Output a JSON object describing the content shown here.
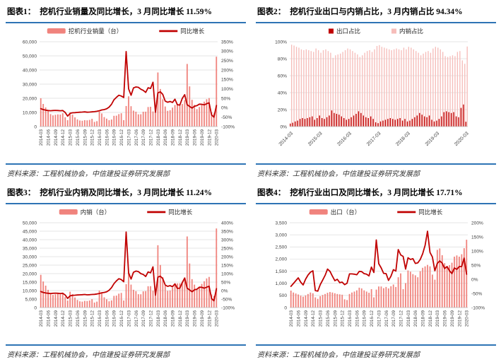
{
  "colors": {
    "accent_rule": "#2E74B5",
    "bar_pink": "#F0837D",
    "pale_pink": "#F6BDBA",
    "line_red": "#C00000",
    "grid": "#DCDCDC",
    "axis_text": "#3F3F3F"
  },
  "panels": [
    {
      "tag": "图表1：",
      "title": "挖机行业销量及同比增长，3 月同比增长 11.59%",
      "source": "资料来源：工程机械协会，中信建投证券研究发展部"
    },
    {
      "tag": "图表2：",
      "title": "挖机行业出口与内销占比，3 月内销占比 94.34%",
      "source": "资料来源：工程机械协会，中信建投证券研究发展部"
    },
    {
      "tag": "图表3：",
      "title": "挖机行业内销及同比增长，3 月同比增长 11.24%",
      "source": "资料来源：工程机械协会，中信建投证券研究发展部"
    },
    {
      "tag": "图表4：",
      "title": "挖机行业出口及同比增长，3 月同比增长 17.71%",
      "source": "资料来源：工程机械协会，中信建投证券研究发展部"
    }
  ],
  "months": [
    "2014-03",
    "2014-04",
    "2014-05",
    "2014-06",
    "2014-07",
    "2014-08",
    "2014-09",
    "2014-10",
    "2014-11",
    "2014-12",
    "2015-01",
    "2015-02",
    "2015-03",
    "2015-04",
    "2015-05",
    "2015-06",
    "2015-07",
    "2015-08",
    "2015-09",
    "2015-10",
    "2015-11",
    "2015-12",
    "2016-01",
    "2016-02",
    "2016-03",
    "2016-04",
    "2016-05",
    "2016-06",
    "2016-07",
    "2016-08",
    "2016-09",
    "2016-10",
    "2016-11",
    "2016-12",
    "2017-01",
    "2017-02",
    "2017-03",
    "2017-04",
    "2017-05",
    "2017-06",
    "2017-07",
    "2017-08",
    "2017-09",
    "2017-10",
    "2017-11",
    "2017-12",
    "2018-01",
    "2018-02",
    "2018-03",
    "2018-04",
    "2018-05",
    "2018-06",
    "2018-07",
    "2018-08",
    "2018-09",
    "2018-10",
    "2018-11",
    "2018-12",
    "2019-01",
    "2019-02",
    "2019-03",
    "2019-04",
    "2019-05",
    "2019-06",
    "2019-07",
    "2019-08",
    "2019-09",
    "2019-10",
    "2019-11",
    "2019-12",
    "2020-01",
    "2020-02",
    "2020-03"
  ],
  "chart_data": [
    {
      "id": "industry-sales-yoy",
      "type": "combo",
      "title": "挖机行业销量及同比增长",
      "x_tick_step": 3,
      "left_axis": {
        "min": 0,
        "max": 60000,
        "step": 10000,
        "format": "comma"
      },
      "right_axis": {
        "min": -100,
        "max": 350,
        "step": 50,
        "format": "percent"
      },
      "bars": {
        "name": "挖机行业销量（台）",
        "color": "#F0837D",
        "values": [
          20000,
          16000,
          13500,
          11000,
          8800,
          7900,
          8300,
          8600,
          8500,
          9400,
          6600,
          4500,
          9800,
          8400,
          6500,
          5100,
          4300,
          4100,
          4500,
          4400,
          4700,
          5500,
          3300,
          3800,
          10600,
          9300,
          6700,
          5600,
          4500,
          5000,
          7600,
          7700,
          8800,
          9400,
          4550,
          14530,
          21390,
          14400,
          11280,
          10510,
          8660,
          8710,
          10500,
          10540,
          13820,
          14010,
          10690,
          11110,
          38260,
          26560,
          19310,
          14190,
          11120,
          11590,
          13410,
          15270,
          16030,
          16030,
          15950,
          18750,
          44280,
          28410,
          18900,
          15330,
          12350,
          13840,
          15800,
          17610,
          19320,
          20160,
          9940,
          9280,
          49410
        ]
      },
      "line": {
        "name": "同比增长",
        "color": "#C00000",
        "values": [
          -5,
          -10,
          -13,
          -15,
          -16,
          -15,
          -14,
          -15,
          -16,
          -15,
          -25,
          -45,
          -30,
          -27,
          -26,
          -25,
          -24,
          -23,
          -22,
          -24,
          -23,
          -22,
          -21,
          -19,
          -16,
          -12,
          -10,
          -6,
          3,
          18,
          42,
          55,
          66,
          62,
          54,
          298,
          100,
          66,
          105,
          110,
          108,
          98,
          92,
          81,
          106,
          102,
          135,
          -24,
          79,
          84,
          71,
          35,
          29,
          33,
          28,
          45,
          16,
          14,
          49,
          69,
          16,
          7,
          -2,
          8,
          11,
          19,
          18,
          15,
          21,
          26,
          -38,
          -50,
          11.59
        ]
      }
    },
    {
      "id": "export-domestic-share",
      "type": "share",
      "title": "挖机行业出口与内销占比",
      "x_tick_indexes": [
        0,
        12,
        24,
        36,
        48,
        60,
        72
      ],
      "left_axis": {
        "min": 0,
        "max": 100,
        "step": 20,
        "format": "percent"
      },
      "series": [
        {
          "name": "出口占比",
          "color": "#C00000",
          "values": [
            3.5,
            4.5,
            6,
            7,
            9,
            10,
            9,
            10,
            11,
            12,
            8,
            10,
            13,
            10,
            9,
            11,
            13,
            19,
            16,
            15,
            14,
            12,
            10,
            8,
            9,
            11,
            13,
            15,
            18,
            16,
            13,
            11,
            10,
            12,
            9,
            5,
            4,
            6,
            7,
            8,
            9,
            10,
            9,
            8,
            9,
            10,
            7,
            9,
            6,
            7,
            9,
            11,
            13,
            16,
            14,
            12,
            11,
            13,
            8,
            6,
            7,
            9,
            12,
            17,
            18,
            17,
            16,
            17,
            12,
            11,
            22,
            26,
            5.66
          ]
        },
        {
          "name": "内销占比",
          "color": "#F6BDBA",
          "values": [
            96.5,
            95.5,
            94,
            93,
            91,
            90,
            91,
            90,
            89,
            88,
            92,
            90,
            87,
            90,
            91,
            89,
            87,
            81,
            84,
            85,
            86,
            88,
            90,
            92,
            91,
            89,
            87,
            85,
            82,
            84,
            87,
            89,
            90,
            88,
            91,
            95,
            96,
            94,
            93,
            92,
            91,
            90,
            91,
            92,
            91,
            90,
            93,
            91,
            94,
            93,
            91,
            89,
            87,
            84,
            86,
            88,
            89,
            87,
            92,
            94,
            93,
            91,
            88,
            83,
            82,
            83,
            84,
            83,
            88,
            89,
            78,
            74,
            94.34
          ]
        }
      ]
    },
    {
      "id": "domestic-sales-yoy",
      "type": "combo",
      "title": "挖机行业内销及同比增长",
      "x_tick_step": 3,
      "left_axis": {
        "min": 0,
        "max": 50000,
        "step": 5000,
        "format": "comma"
      },
      "right_axis": {
        "min": -100,
        "max": 400,
        "step": 50,
        "format": "percent"
      },
      "bars": {
        "name": "内销（台）",
        "color": "#F0837D",
        "values": [
          19300,
          15380,
          12920,
          10460,
          8310,
          7450,
          7800,
          8040,
          7880,
          8810,
          6180,
          4140,
          9330,
          7880,
          5940,
          4490,
          3660,
          3480,
          3910,
          3840,
          4155,
          4970,
          2960,
          3490,
          10040,
          8680,
          6040,
          4890,
          3680,
          4210,
          6890,
          7040,
          8190,
          8640,
          4130,
          13790,
          20520,
          13530,
          10480,
          9660,
          7870,
          7830,
          9550,
          9690,
          12570,
          12600,
          9930,
          10100,
          36730,
          25080,
          17930,
          12860,
          9870,
          10090,
          11770,
          13570,
          14270,
          14330,
          14590,
          17600,
          41900,
          25970,
          16740,
          13500,
          10650,
          12090,
          13950,
          15510,
          17170,
          18060,
          7740,
          6830,
          46610
        ]
      },
      "line": {
        "name": "同比增长",
        "color": "#C00000",
        "values": [
          -6,
          -11,
          -14,
          -16,
          -17,
          -16,
          -15,
          -16,
          -17,
          -16,
          -26,
          -46,
          -31,
          -28,
          -27,
          -26,
          -25,
          -24,
          -23,
          -25,
          -24,
          -23,
          -22,
          -20,
          -17,
          -13,
          -11,
          -7,
          2,
          17,
          41,
          57,
          70,
          65,
          52,
          345,
          104,
          68,
          108,
          115,
          112,
          100,
          95,
          83,
          110,
          105,
          140,
          -27,
          79,
          85,
          71,
          33,
          25,
          29,
          23,
          40,
          13,
          14,
          47,
          74,
          14,
          4,
          -7,
          5,
          8,
          20,
          19,
          14,
          20,
          26,
          -47,
          -60,
          11.24
        ]
      }
    },
    {
      "id": "export-sales-yoy",
      "type": "combo",
      "title": "挖机行业出口及同比增长",
      "x_tick_step": 3,
      "left_axis": {
        "min": 0,
        "max": 3500,
        "step": 500,
        "format": "comma"
      },
      "right_axis": {
        "min": -100,
        "max": 200,
        "step": 50,
        "format": "percent"
      },
      "bars": {
        "name": "出口（台）",
        "color": "#F0837D",
        "values": [
          700,
          620,
          580,
          540,
          490,
          450,
          500,
          560,
          620,
          590,
          420,
          360,
          470,
          520,
          560,
          610,
          640,
          620,
          590,
          560,
          545,
          530,
          340,
          310,
          560,
          620,
          660,
          710,
          820,
          790,
          710,
          660,
          610,
          760,
          420,
          740,
          870,
          870,
          800,
          850,
          790,
          880,
          950,
          850,
          1250,
          1410,
          760,
          1010,
          1530,
          1480,
          1380,
          1330,
          1250,
          1500,
          1640,
          1700,
          1760,
          1700,
          1360,
          1150,
          2380,
          2440,
          2160,
          1830,
          1700,
          1750,
          1850,
          2100,
          2150,
          2100,
          2200,
          2450,
          2798
        ]
      },
      "line": {
        "name": "同比增长",
        "color": "#C00000",
        "values": [
          -25,
          -15,
          -5,
          5,
          -10,
          -20,
          0,
          15,
          25,
          30,
          -40,
          -42,
          -19,
          -3,
          14,
          36,
          28,
          11,
          -5,
          0,
          -12,
          -10,
          -19,
          -14,
          19,
          19,
          18,
          16,
          28,
          27,
          20,
          18,
          12,
          43,
          24,
          139,
          55,
          40,
          21,
          20,
          -4,
          11,
          34,
          29,
          105,
          86,
          81,
          36,
          76,
          70,
          73,
          56,
          58,
          70,
          90,
          120,
          170,
          95,
          79,
          30,
          56,
          65,
          57,
          38,
          45,
          30,
          20,
          40,
          35,
          45,
          45,
          75,
          17.71
        ]
      }
    }
  ]
}
